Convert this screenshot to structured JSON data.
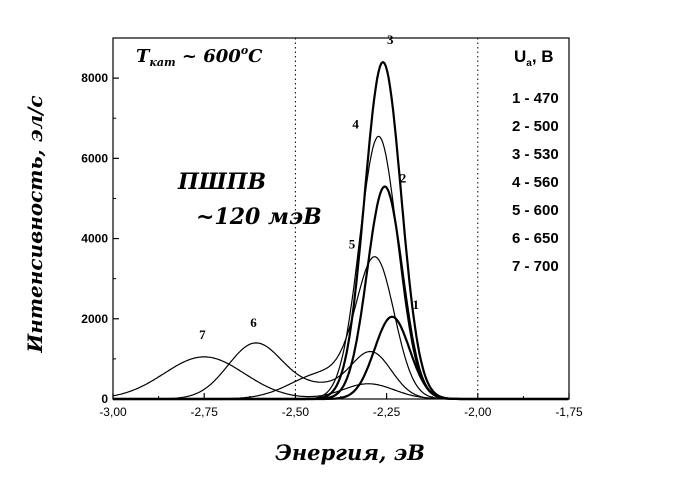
{
  "chart_data": {
    "type": "line",
    "xlabel": "Энергия, эВ",
    "ylabel": "Интенсивность, эл/с",
    "xlim": [
      -3.0,
      -1.75
    ],
    "ylim": [
      0,
      9000
    ],
    "x_ticks": [
      -3.0,
      -2.75,
      -2.5,
      -2.25,
      -2.0,
      -1.75
    ],
    "x_tick_labels": [
      "-3,00",
      "-2,75",
      "-2,50",
      "-2,25",
      "-2,00",
      "-1,75"
    ],
    "y_ticks": [
      0,
      2000,
      4000,
      6000,
      8000
    ],
    "y_tick_labels": [
      "0",
      "2000",
      "4000",
      "6000",
      "8000"
    ],
    "gridlines_x": [
      -2.5,
      -2.0
    ],
    "annotation_temp_main": "T",
    "annotation_temp_sub": "кат",
    "annotation_temp_rest": " ~ 600",
    "annotation_temp_deg": "o",
    "annotation_temp_unit": "C",
    "annotation_method": "ПШПВ",
    "annotation_fwhm": "~120 мэВ",
    "legend_title_main": "U",
    "legend_title_sub": "a",
    "legend_title_rest": ", В",
    "legend_entries": [
      "1 - 470",
      "2 - 500",
      "3 - 530",
      "4 - 560",
      "5 - 600",
      "6 - 650",
      "7 - 700"
    ],
    "series": [
      {
        "name": "1",
        "voltage": 470,
        "label": "1",
        "label_at": [
          -2.17,
          2250
        ],
        "components": [
          {
            "A": 2050,
            "mu": -2.235,
            "sigma": 0.048
          }
        ]
      },
      {
        "name": "2",
        "voltage": 500,
        "label": "2",
        "label_at": [
          -2.205,
          5400
        ],
        "components": [
          {
            "A": 5300,
            "mu": -2.255,
            "sigma": 0.048
          }
        ]
      },
      {
        "name": "3",
        "voltage": 530,
        "label": "3",
        "label_at": [
          -2.24,
          8850
        ],
        "components": [
          {
            "A": 8400,
            "mu": -2.26,
            "sigma": 0.05
          }
        ]
      },
      {
        "name": "4",
        "voltage": 560,
        "label": "4",
        "label_at": [
          -2.335,
          6750
        ],
        "components": [
          {
            "A": 6550,
            "mu": -2.272,
            "sigma": 0.052
          }
        ]
      },
      {
        "name": "5",
        "voltage": 600,
        "label": "5",
        "label_at": [
          -2.345,
          3750
        ],
        "components": [
          {
            "A": 3350,
            "mu": -2.28,
            "sigma": 0.052
          },
          {
            "A": 650,
            "mu": -2.42,
            "sigma": 0.09
          }
        ]
      },
      {
        "name": "6",
        "voltage": 650,
        "label": "6",
        "label_at": [
          -2.615,
          1800
        ],
        "components": [
          {
            "A": 1380,
            "mu": -2.61,
            "sigma": 0.075
          },
          {
            "A": 1100,
            "mu": -2.29,
            "sigma": 0.055
          },
          {
            "A": 300,
            "mu": -2.42,
            "sigma": 0.08
          }
        ]
      },
      {
        "name": "7",
        "voltage": 700,
        "label": "7",
        "label_at": [
          -2.755,
          1500
        ],
        "components": [
          {
            "A": 1050,
            "mu": -2.75,
            "sigma": 0.11
          },
          {
            "A": 380,
            "mu": -2.3,
            "sigma": 0.07
          }
        ]
      }
    ]
  }
}
